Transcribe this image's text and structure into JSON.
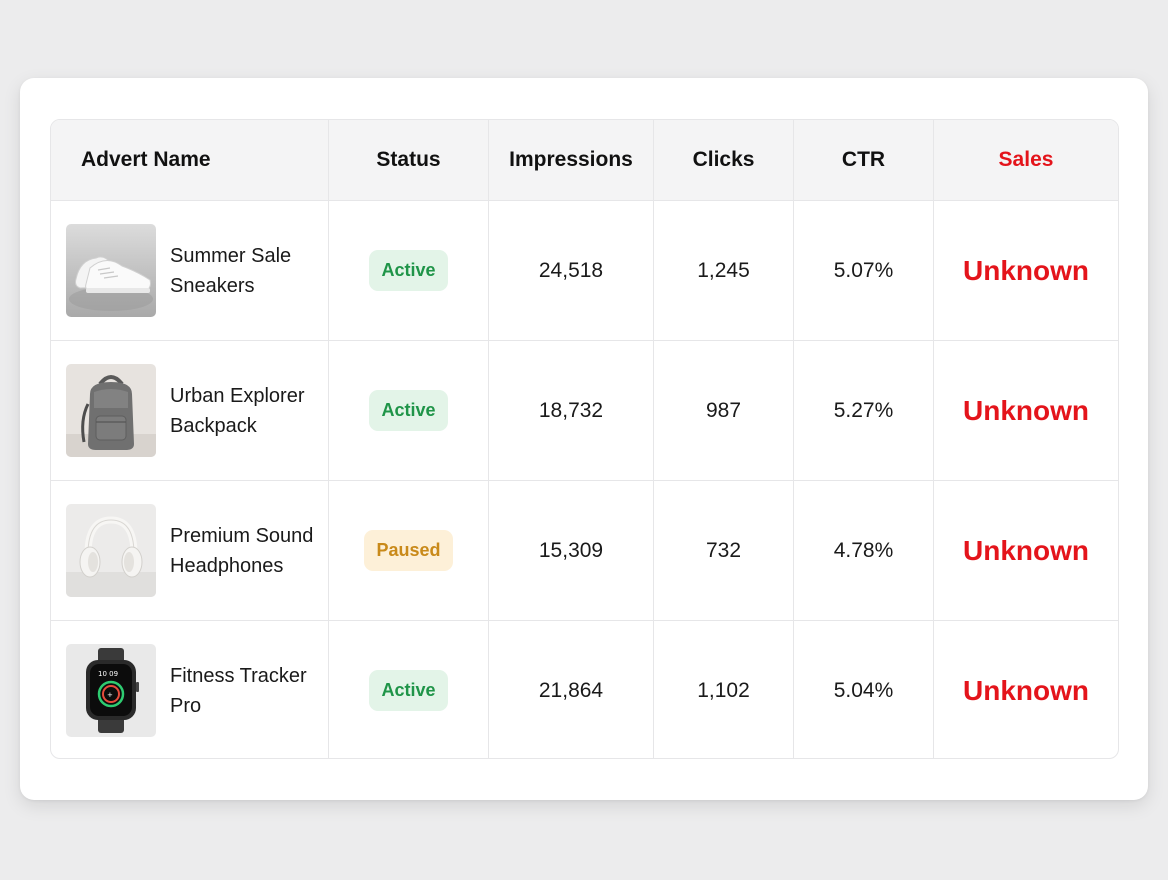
{
  "colors": {
    "sales_accent": "#e4141b",
    "active_badge_bg": "#e3f4e8",
    "active_badge_text": "#1f9448",
    "paused_badge_bg": "#fdf0d8",
    "paused_badge_text": "#c98a1a"
  },
  "table": {
    "headers": {
      "name": "Advert Name",
      "status": "Status",
      "impressions": "Impressions",
      "clicks": "Clicks",
      "ctr": "CTR",
      "sales": "Sales"
    },
    "rows": [
      {
        "name": "Summer Sale Sneakers",
        "image": "sneakers-image",
        "status": "Active",
        "impressions": "24,518",
        "clicks": "1,245",
        "ctr": "5.07%",
        "sales": "Unknown"
      },
      {
        "name": "Urban Explorer Backpack",
        "image": "backpack-image",
        "status": "Active",
        "impressions": "18,732",
        "clicks": "987",
        "ctr": "5.27%",
        "sales": "Unknown"
      },
      {
        "name": "Premium Sound Headphones",
        "image": "headphones-image",
        "status": "Paused",
        "impressions": "15,309",
        "clicks": "732",
        "ctr": "4.78%",
        "sales": "Unknown"
      },
      {
        "name": "Fitness Tracker Pro",
        "image": "smartwatch-image",
        "status": "Active",
        "impressions": "21,864",
        "clicks": "1,102",
        "ctr": "5.04%",
        "sales": "Unknown",
        "watch_face_time": "10 09"
      }
    ]
  }
}
